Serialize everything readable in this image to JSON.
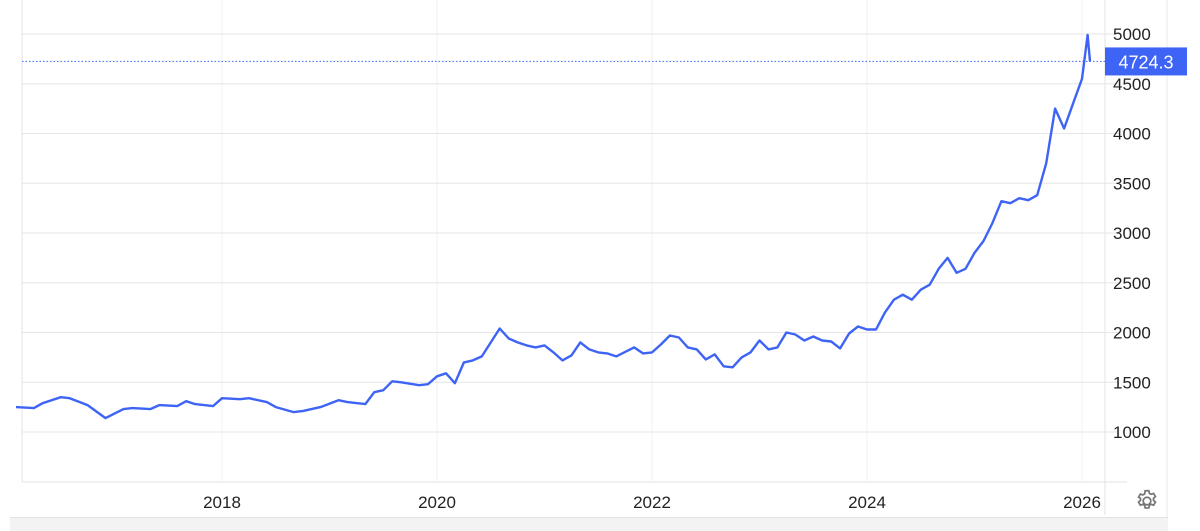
{
  "chart_data": {
    "type": "line",
    "title": "",
    "xlabel": "",
    "ylabel": "",
    "x_ticks": [
      "2018",
      "2020",
      "2022",
      "2024",
      "2026"
    ],
    "y_ticks": [
      1000,
      1500,
      2000,
      2500,
      3000,
      3500,
      4000,
      4500,
      5000
    ],
    "ylim": [
      500,
      5340
    ],
    "xlim": [
      "2016-02",
      "2026-03"
    ],
    "grid": true,
    "y_axis_side": "right",
    "line_color": "#3e64f5",
    "last_value_label": "4724.3",
    "last_value_color": "#3e64f5",
    "series": [
      {
        "points": [
          [
            "2016-02",
            1250
          ],
          [
            "2016-04",
            1240
          ],
          [
            "2016-05",
            1290
          ],
          [
            "2016-07",
            1350
          ],
          [
            "2016-08",
            1340
          ],
          [
            "2016-10",
            1270
          ],
          [
            "2016-12",
            1140
          ],
          [
            "2017-02",
            1230
          ],
          [
            "2017-03",
            1240
          ],
          [
            "2017-05",
            1230
          ],
          [
            "2017-06",
            1270
          ],
          [
            "2017-08",
            1260
          ],
          [
            "2017-09",
            1310
          ],
          [
            "2017-10",
            1280
          ],
          [
            "2017-12",
            1260
          ],
          [
            "2018-01",
            1340
          ],
          [
            "2018-03",
            1330
          ],
          [
            "2018-04",
            1340
          ],
          [
            "2018-06",
            1300
          ],
          [
            "2018-07",
            1250
          ],
          [
            "2018-09",
            1200
          ],
          [
            "2018-10",
            1210
          ],
          [
            "2018-12",
            1250
          ],
          [
            "2019-02",
            1320
          ],
          [
            "2019-03",
            1300
          ],
          [
            "2019-05",
            1280
          ],
          [
            "2019-06",
            1400
          ],
          [
            "2019-07",
            1420
          ],
          [
            "2019-08",
            1510
          ],
          [
            "2019-09",
            1500
          ],
          [
            "2019-11",
            1470
          ],
          [
            "2019-12",
            1480
          ],
          [
            "2020-01",
            1560
          ],
          [
            "2020-02",
            1590
          ],
          [
            "2020-03",
            1490
          ],
          [
            "2020-04",
            1700
          ],
          [
            "2020-05",
            1720
          ],
          [
            "2020-06",
            1760
          ],
          [
            "2020-07",
            1900
          ],
          [
            "2020-08",
            2040
          ],
          [
            "2020-09",
            1940
          ],
          [
            "2020-10",
            1900
          ],
          [
            "2020-11",
            1870
          ],
          [
            "2020-12",
            1850
          ],
          [
            "2021-01",
            1870
          ],
          [
            "2021-02",
            1800
          ],
          [
            "2021-03",
            1720
          ],
          [
            "2021-04",
            1770
          ],
          [
            "2021-05",
            1900
          ],
          [
            "2021-06",
            1830
          ],
          [
            "2021-07",
            1800
          ],
          [
            "2021-08",
            1790
          ],
          [
            "2021-09",
            1760
          ],
          [
            "2021-11",
            1850
          ],
          [
            "2021-12",
            1790
          ],
          [
            "2022-01",
            1800
          ],
          [
            "2022-02",
            1880
          ],
          [
            "2022-03",
            1970
          ],
          [
            "2022-04",
            1950
          ],
          [
            "2022-05",
            1850
          ],
          [
            "2022-06",
            1830
          ],
          [
            "2022-07",
            1730
          ],
          [
            "2022-08",
            1780
          ],
          [
            "2022-09",
            1660
          ],
          [
            "2022-10",
            1650
          ],
          [
            "2022-11",
            1750
          ],
          [
            "2022-12",
            1800
          ],
          [
            "2023-01",
            1920
          ],
          [
            "2023-02",
            1830
          ],
          [
            "2023-03",
            1850
          ],
          [
            "2023-04",
            2000
          ],
          [
            "2023-05",
            1980
          ],
          [
            "2023-06",
            1920
          ],
          [
            "2023-07",
            1960
          ],
          [
            "2023-08",
            1920
          ],
          [
            "2023-09",
            1910
          ],
          [
            "2023-10",
            1840
          ],
          [
            "2023-11",
            1990
          ],
          [
            "2023-12",
            2060
          ],
          [
            "2024-01",
            2030
          ],
          [
            "2024-02",
            2030
          ],
          [
            "2024-03",
            2200
          ],
          [
            "2024-04",
            2330
          ],
          [
            "2024-05",
            2380
          ],
          [
            "2024-06",
            2330
          ],
          [
            "2024-07",
            2430
          ],
          [
            "2024-08",
            2480
          ],
          [
            "2024-09",
            2640
          ],
          [
            "2024-10",
            2750
          ],
          [
            "2024-11",
            2600
          ],
          [
            "2024-12",
            2640
          ],
          [
            "2025-01",
            2800
          ],
          [
            "2025-02",
            2920
          ],
          [
            "2025-03",
            3100
          ],
          [
            "2025-04",
            3320
          ],
          [
            "2025-05",
            3300
          ],
          [
            "2025-06",
            3350
          ],
          [
            "2025-07",
            3330
          ],
          [
            "2025-08",
            3380
          ],
          [
            "2025-09",
            3700
          ],
          [
            "2025-10",
            4250
          ],
          [
            "2025-11",
            4050
          ],
          [
            "2025-12",
            4300
          ],
          [
            "2026-01",
            4550
          ],
          [
            "2026-01-20",
            4990
          ],
          [
            "2026-01-28",
            4724.3
          ]
        ]
      }
    ]
  }
}
